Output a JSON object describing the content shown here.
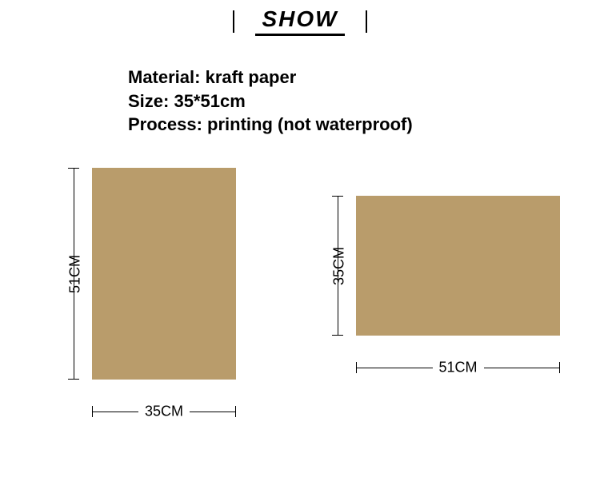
{
  "header": {
    "title": "SHOW"
  },
  "spec": {
    "material": "Material: kraft paper",
    "size": "Size: 35*51cm",
    "process": "Process: printing (not waterproof)"
  },
  "colors": {
    "kraft": "#b99c6b",
    "line": "#000000",
    "background": "#ffffff"
  },
  "portrait": {
    "width_label": "35CM",
    "height_label": "51CM"
  },
  "landscape": {
    "width_label": "51CM",
    "height_label": "35CM"
  }
}
